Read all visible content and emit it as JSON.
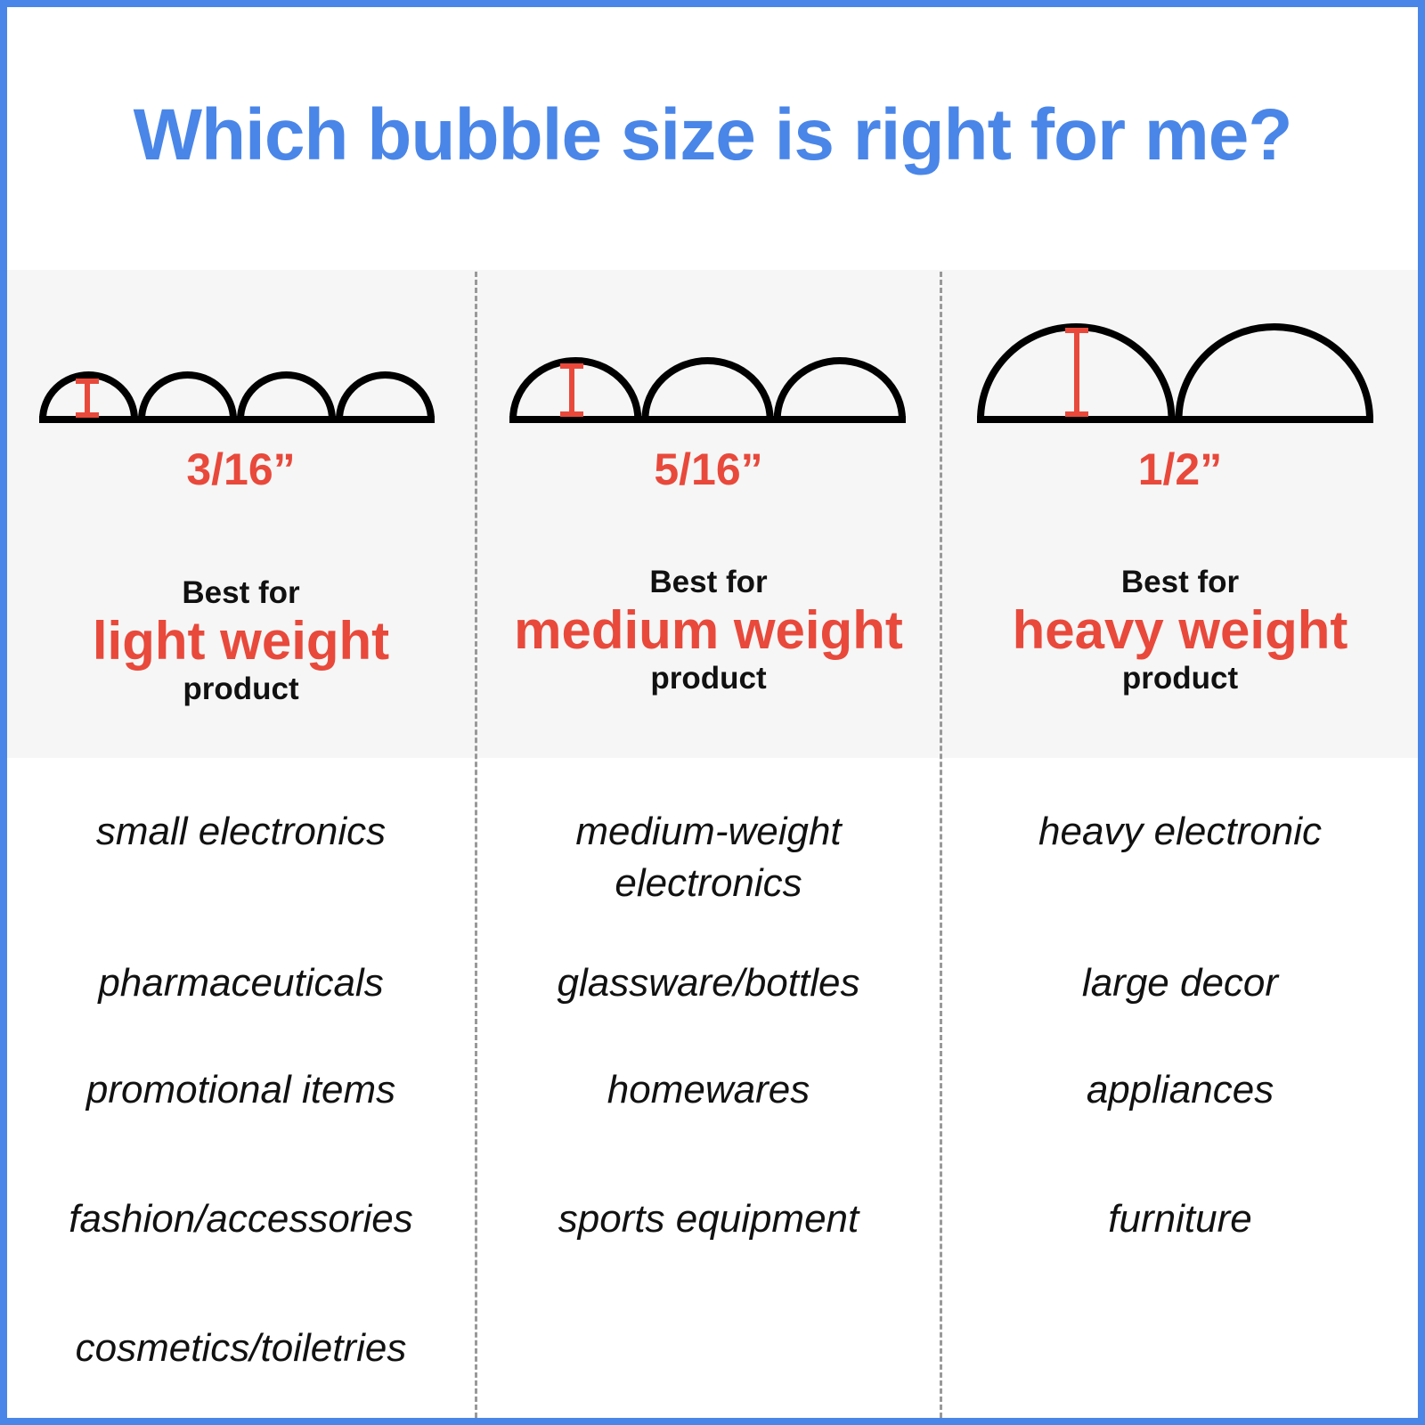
{
  "title": "Which bubble size is right for me?",
  "colors": {
    "accent_blue": "#4a86e8",
    "accent_red": "#e8493b",
    "band_gray": "#f6f6f6"
  },
  "columns": [
    {
      "bubble_count": 4,
      "size": "3/16”",
      "best_for": "Best for",
      "weight": "light weight",
      "product": "product",
      "items": [
        "small electronics",
        "pharmaceuticals",
        "promotional items",
        "fashion/accessories",
        "cosmetics/toiletries"
      ]
    },
    {
      "bubble_count": 3,
      "size": "5/16”",
      "best_for": "Best for",
      "weight": "medium weight",
      "product": "product",
      "items": [
        "medium-weight electronics",
        "glassware/bottles",
        "homewares",
        "sports equipment"
      ]
    },
    {
      "bubble_count": 2,
      "size": "1/2”",
      "best_for": "Best for",
      "weight": "heavy weight",
      "product": "product",
      "items": [
        "heavy electronic",
        "large decor",
        "appliances",
        "furniture"
      ]
    }
  ]
}
